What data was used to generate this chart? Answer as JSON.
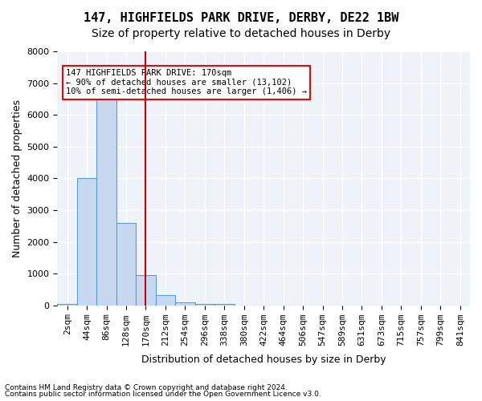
{
  "title": "147, HIGHFIELDS PARK DRIVE, DERBY, DE22 1BW",
  "subtitle": "Size of property relative to detached houses in Derby",
  "xlabel": "Distribution of detached houses by size in Derby",
  "ylabel": "Number of detached properties",
  "footnote1": "Contains HM Land Registry data © Crown copyright and database right 2024.",
  "footnote2": "Contains public sector information licensed under the Open Government Licence v3.0.",
  "bin_labels": [
    "2sqm",
    "44sqm",
    "86sqm",
    "128sqm",
    "170sqm",
    "212sqm",
    "254sqm",
    "296sqm",
    "338sqm",
    "380sqm",
    "422sqm",
    "464sqm",
    "506sqm",
    "547sqm",
    "589sqm",
    "631sqm",
    "673sqm",
    "715sqm",
    "757sqm",
    "799sqm",
    "841sqm"
  ],
  "bar_heights": [
    50,
    4000,
    6600,
    2600,
    950,
    330,
    100,
    50,
    30,
    0,
    0,
    0,
    0,
    0,
    0,
    0,
    0,
    0,
    0,
    0,
    0
  ],
  "bar_color": "#c6d9f0",
  "bar_edge_color": "#5a9bd5",
  "red_line_index": 4,
  "annotation_text": "147 HIGHFIELDS PARK DRIVE: 170sqm\n← 90% of detached houses are smaller (13,102)\n10% of semi-detached houses are larger (1,406) →",
  "annotation_box_color": "white",
  "annotation_border_color": "red",
  "red_line_color": "#cc0000",
  "background_color": "#eef3fa",
  "ylim": [
    0,
    8000
  ],
  "yticks": [
    0,
    1000,
    2000,
    3000,
    4000,
    5000,
    6000,
    7000,
    8000
  ],
  "grid_color": "white",
  "title_fontsize": 11,
  "subtitle_fontsize": 10,
  "axis_label_fontsize": 9,
  "tick_fontsize": 8
}
